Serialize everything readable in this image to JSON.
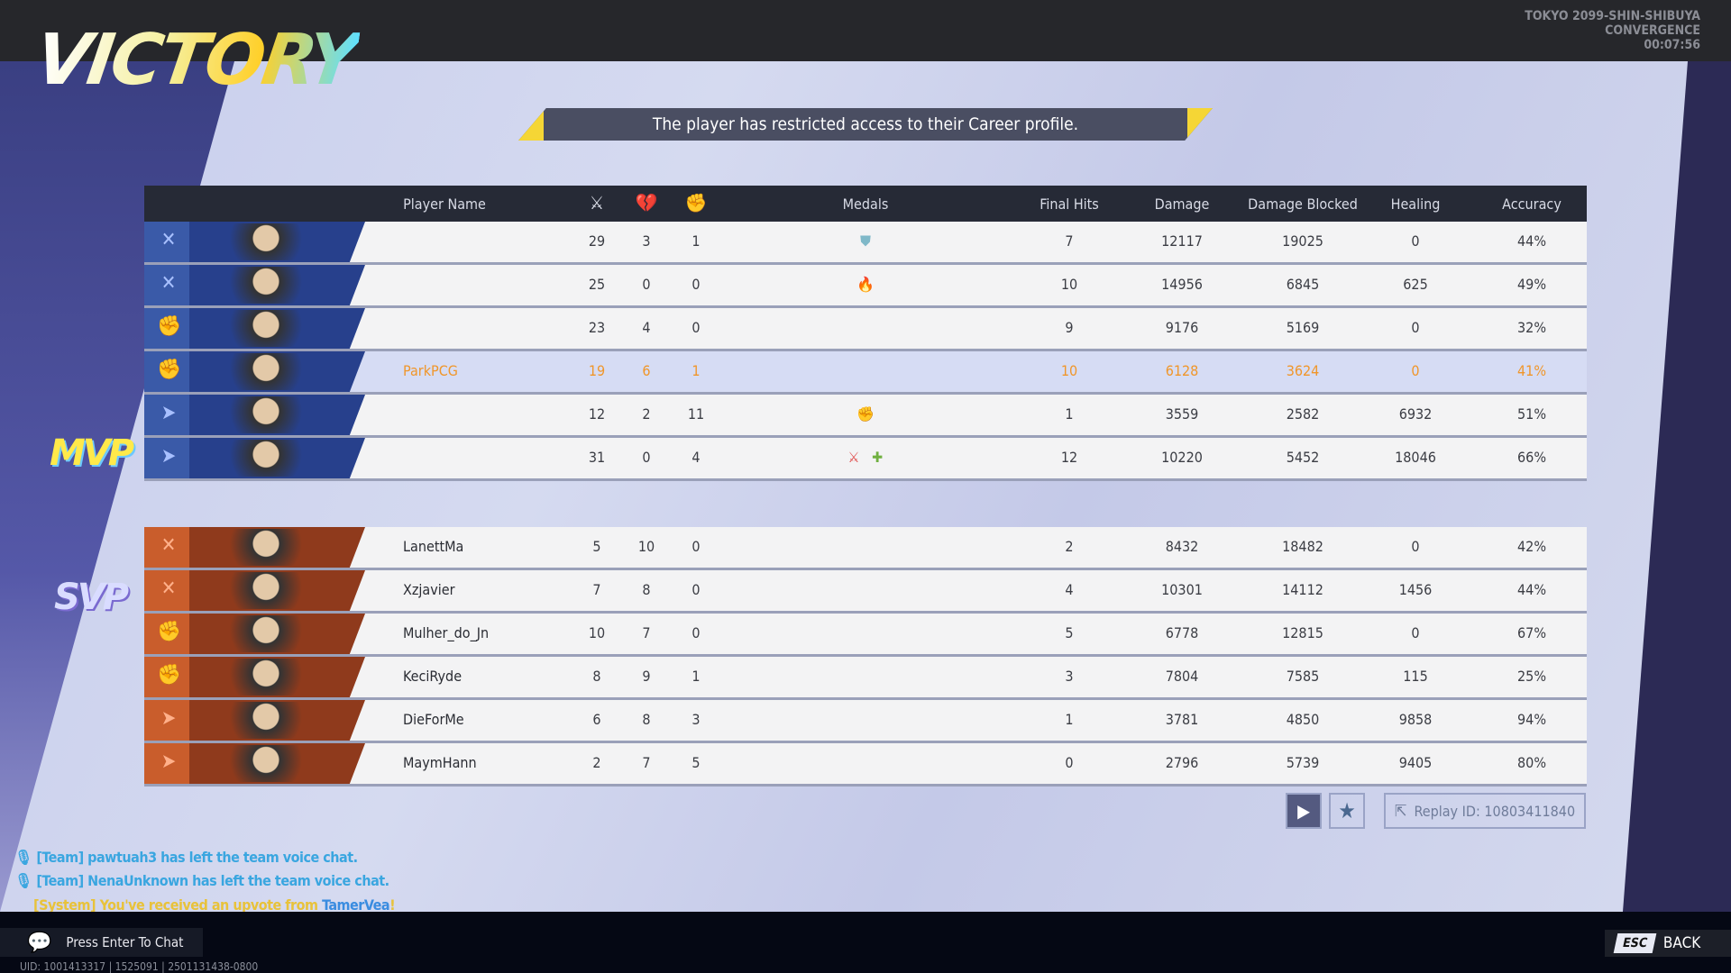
{
  "header": {
    "title": "VICTORY",
    "map_line1": "TOKYO 2099-SHIN-SHIBUYA",
    "map_line2": "CONVERGENCE",
    "match_time": "00:07:56"
  },
  "banner": "The player has restricted access to their Career profile.",
  "table": {
    "columns": {
      "player": "Player Name",
      "kills_icon": "crossed-swords-icon",
      "deaths_icon": "broken-heart-icon",
      "assists_icon": "assist-icon",
      "medals": "Medals",
      "final_hits": "Final Hits",
      "damage": "Damage",
      "blocked": "Damage Blocked",
      "healing": "Healing",
      "accuracy": "Accuracy"
    },
    "team1": [
      {
        "role": "vanguard",
        "name": "",
        "k": "29",
        "d": "3",
        "a": "1",
        "medals": [
          "shield-medal-icon"
        ],
        "fh": "7",
        "dmg": "12117",
        "blk": "19025",
        "heal": "0",
        "acc": "44%"
      },
      {
        "role": "vanguard",
        "name": "",
        "k": "25",
        "d": "0",
        "a": "0",
        "medals": [
          "flame-medal-icon"
        ],
        "fh": "10",
        "dmg": "14956",
        "blk": "6845",
        "heal": "625",
        "acc": "49%"
      },
      {
        "role": "duelist",
        "name": "",
        "k": "23",
        "d": "4",
        "a": "0",
        "medals": [],
        "fh": "9",
        "dmg": "9176",
        "blk": "5169",
        "heal": "0",
        "acc": "32%"
      },
      {
        "role": "duelist",
        "name": "ParkPCG",
        "k": "19",
        "d": "6",
        "a": "1",
        "medals": [],
        "fh": "10",
        "dmg": "6128",
        "blk": "3624",
        "heal": "0",
        "acc": "41%",
        "self": true
      },
      {
        "role": "strategist",
        "name": "",
        "k": "12",
        "d": "2",
        "a": "11",
        "medals": [
          "fist-medal-icon"
        ],
        "fh": "1",
        "dmg": "3559",
        "blk": "2582",
        "heal": "6932",
        "acc": "51%"
      },
      {
        "role": "strategist",
        "name": "",
        "k": "31",
        "d": "0",
        "a": "4",
        "medals": [
          "swords-medal-icon",
          "heal-medal-icon"
        ],
        "fh": "12",
        "dmg": "10220",
        "blk": "5452",
        "heal": "18046",
        "acc": "66%",
        "mvp": true
      }
    ],
    "team2": [
      {
        "role": "vanguard",
        "name": "LanettMa",
        "k": "5",
        "d": "10",
        "a": "0",
        "medals": [],
        "fh": "2",
        "dmg": "8432",
        "blk": "18482",
        "heal": "0",
        "acc": "42%"
      },
      {
        "role": "vanguard",
        "name": "Xzjavier",
        "k": "7",
        "d": "8",
        "a": "0",
        "medals": [],
        "fh": "4",
        "dmg": "10301",
        "blk": "14112",
        "heal": "1456",
        "acc": "44%"
      },
      {
        "role": "duelist",
        "name": "Mulher_do_Jn",
        "k": "10",
        "d": "7",
        "a": "0",
        "medals": [],
        "fh": "5",
        "dmg": "6778",
        "blk": "12815",
        "heal": "0",
        "acc": "67%",
        "svp": true
      },
      {
        "role": "duelist",
        "name": "KeciRyde",
        "k": "8",
        "d": "9",
        "a": "1",
        "medals": [],
        "fh": "3",
        "dmg": "7804",
        "blk": "7585",
        "heal": "115",
        "acc": "25%"
      },
      {
        "role": "strategist",
        "name": "DieForMe",
        "k": "6",
        "d": "8",
        "a": "3",
        "medals": [],
        "fh": "1",
        "dmg": "3781",
        "blk": "4850",
        "heal": "9858",
        "acc": "94%"
      },
      {
        "role": "strategist",
        "name": "MaymHann",
        "k": "2",
        "d": "7",
        "a": "5",
        "medals": [],
        "fh": "0",
        "dmg": "2796",
        "blk": "5739",
        "heal": "9405",
        "acc": "80%"
      }
    ]
  },
  "badges": {
    "mvp": "MVP",
    "svp": "SVP"
  },
  "replay": {
    "label": "Replay ID: 10803411840"
  },
  "chat": {
    "lines": [
      "[Team] pawtuah3 has left the team voice chat.",
      "[Team] NenaUnknown has left the team voice chat."
    ],
    "system_prefix": "[System] You've received an upvote from",
    "system_user": "TamerVea",
    "system_suffix": "!",
    "prompt": "Press Enter To Chat"
  },
  "footer": {
    "uid": "UID: 1001413317 | 1525091 | 2501131438-0800",
    "esc_key": "ESC",
    "back": "BACK"
  },
  "colors": {
    "self_highlight": "#f0962a",
    "team1": "#27408c",
    "team2": "#8f3a1c",
    "banner_accent": "#f5d635"
  }
}
